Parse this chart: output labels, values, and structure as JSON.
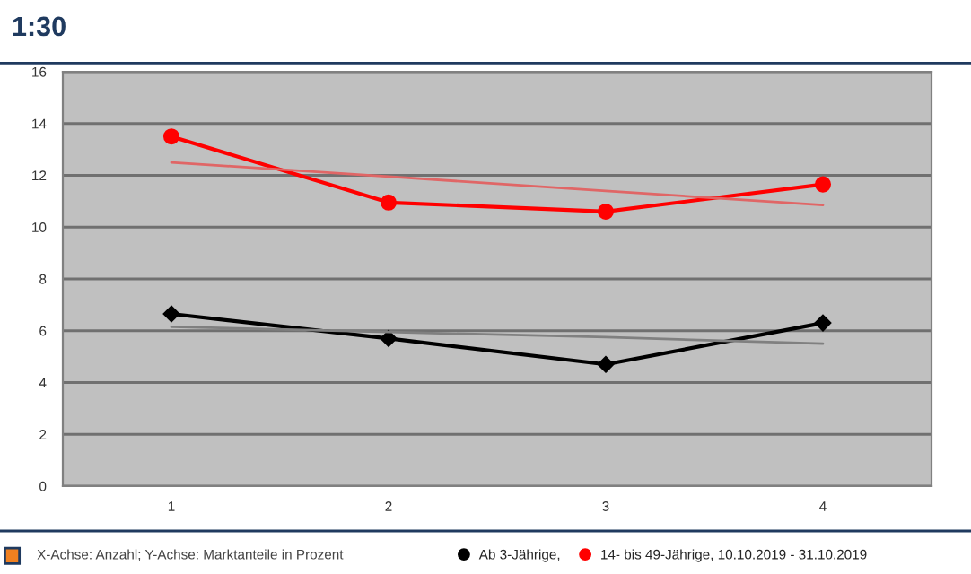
{
  "chart_data": {
    "type": "line",
    "title": "1:30",
    "categories": [
      "1",
      "2",
      "3",
      "4"
    ],
    "series": [
      {
        "name": "Ab 3-Jährige,",
        "color": "#000000",
        "marker": "diamond",
        "values": [
          6.65,
          5.7,
          4.7,
          6.3
        ]
      },
      {
        "name": "14- bis 49-Jährige, 10.10.2019 - 31.10.2019",
        "color": "#ff0000",
        "marker": "circle",
        "values": [
          13.5,
          10.95,
          10.6,
          11.65
        ]
      },
      {
        "color": "#808080",
        "marker": "none",
        "values": [
          6.15,
          5.95,
          5.75,
          5.5
        ]
      },
      {
        "color": "#e06666",
        "marker": "none",
        "values": [
          12.5,
          11.95,
          11.4,
          10.85
        ]
      }
    ],
    "ylim": [
      0,
      16
    ],
    "yticks": [
      0,
      2,
      4,
      6,
      8,
      10,
      12,
      14,
      16
    ],
    "grid": "y",
    "legend": "bottom",
    "annotations": [
      "X-Achse: Anzahl; Y-Achse: Marktanteile in Prozent"
    ]
  }
}
